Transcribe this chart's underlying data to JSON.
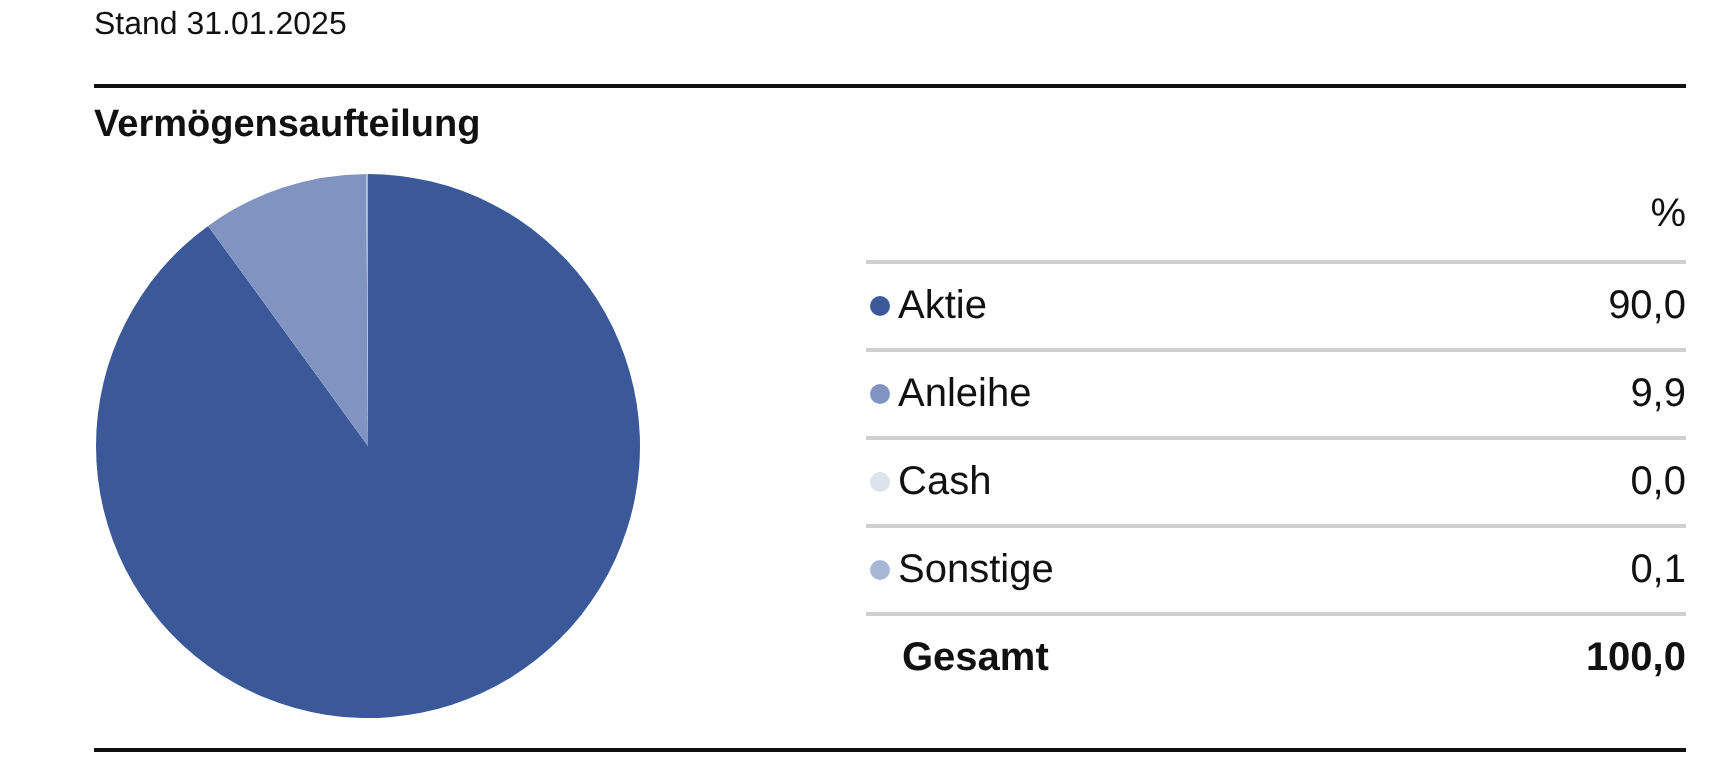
{
  "chart_data": {
    "type": "pie",
    "title": "Vermögensaufteilung",
    "categories": [
      "Aktie",
      "Anleihe",
      "Cash",
      "Sonstige"
    ],
    "values": [
      90.0,
      9.9,
      0.0,
      0.1
    ],
    "colors": [
      "#3b5998",
      "#8093c1",
      "#dde2ed",
      "#a9b7d6"
    ],
    "value_labels": [
      "90,0",
      "9,9",
      "0,0",
      "0,1"
    ],
    "legend_title": "%",
    "legend": "right",
    "annotations": [
      "Stand 31.01.2025",
      "Gesamt",
      "100,0"
    ]
  }
}
